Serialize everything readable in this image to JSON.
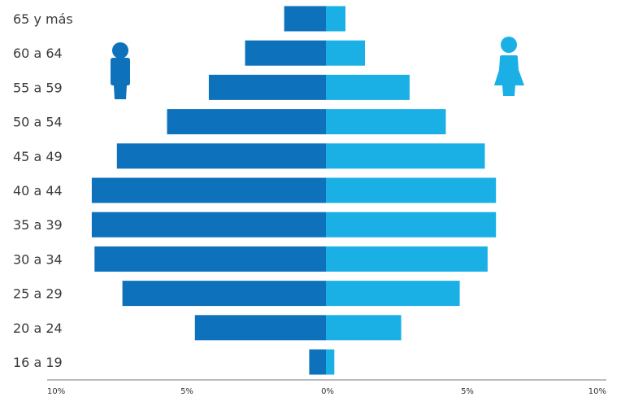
{
  "chart_data": {
    "type": "bar",
    "orientation": "horizontal-diverging",
    "categories": [
      "65 y más",
      "60 a 64",
      "55 a 59",
      "50  a 54",
      "45 a 49",
      "40 a 44",
      "35 a 39",
      "30 a 34",
      "25 a 29",
      "20 a 24",
      "16 a 19"
    ],
    "series": [
      {
        "values": [
          1.5,
          2.9,
          4.2,
          5.7,
          7.5,
          8.4,
          8.4,
          8.3,
          7.3,
          4.7,
          0.6
        ],
        "color": "#0d72bb",
        "side": "left",
        "icon": "male-icon"
      },
      {
        "values": [
          0.7,
          1.4,
          3.0,
          4.3,
          5.7,
          6.1,
          6.1,
          5.8,
          4.8,
          2.7,
          0.3
        ],
        "color": "#1ab0e6",
        "side": "right",
        "icon": "female-icon"
      }
    ],
    "xlim": [
      -10,
      10
    ],
    "x_ticks": [
      "10%",
      "5%",
      "0%",
      "5%",
      "10%"
    ],
    "axis_color": "#7a7a7a",
    "grid": false
  }
}
